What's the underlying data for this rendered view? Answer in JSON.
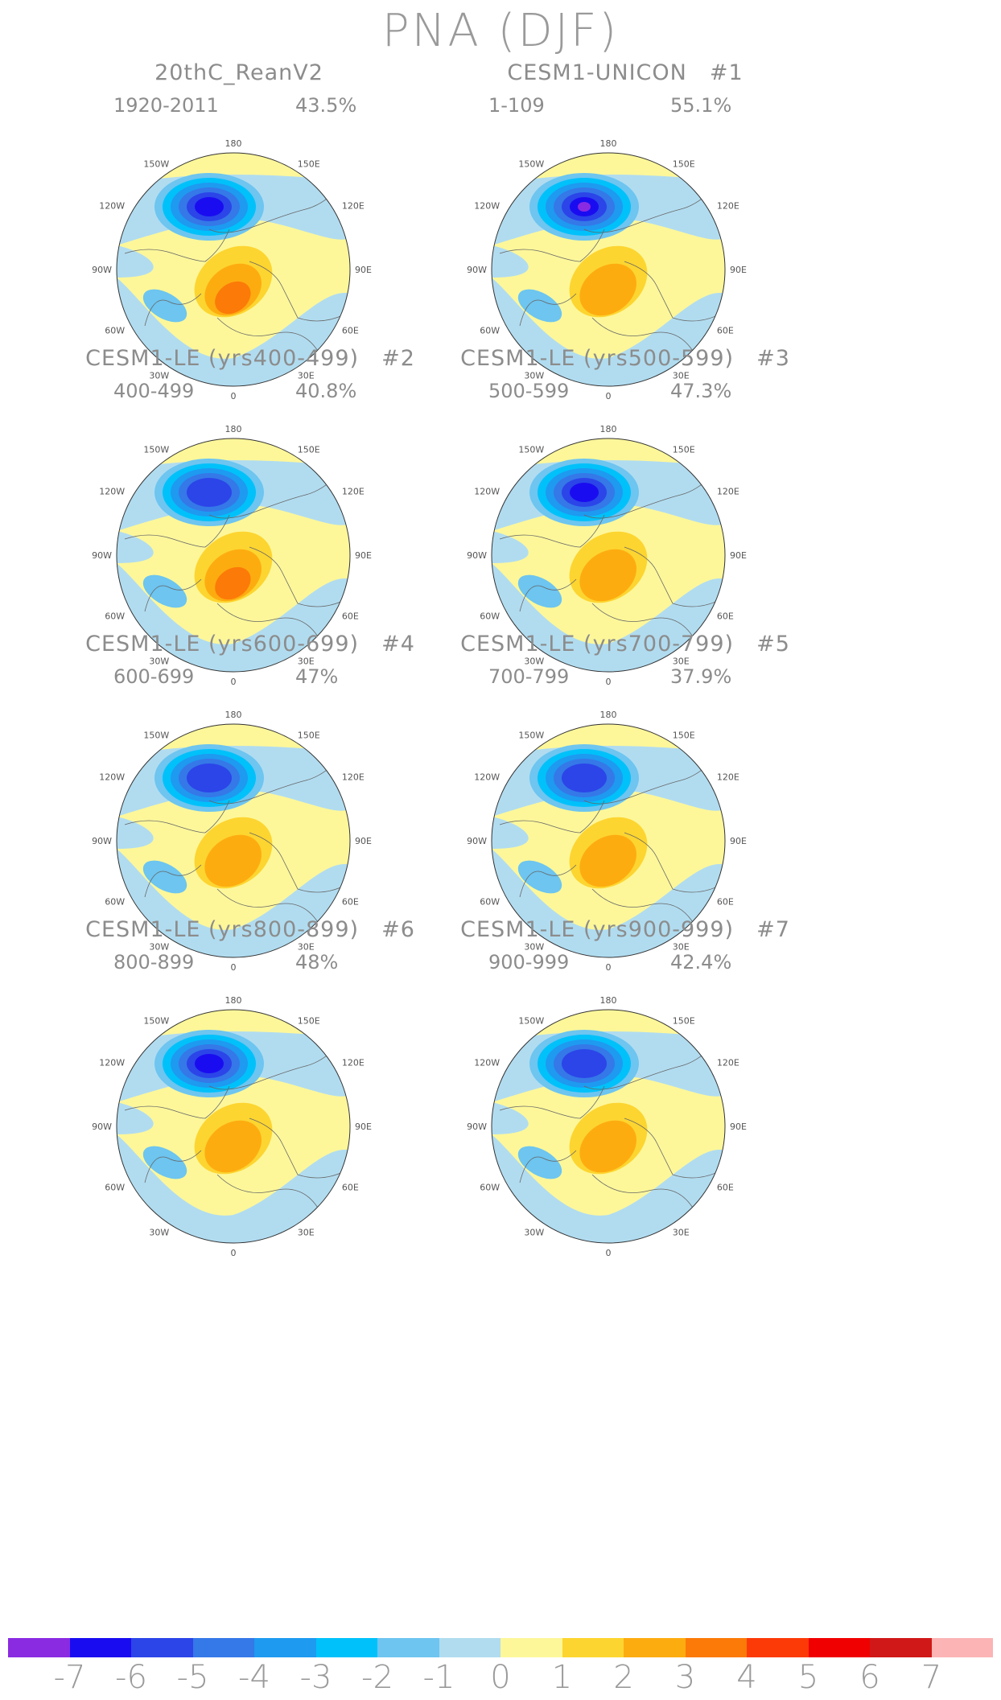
{
  "figure_title": "PNA (DJF)",
  "map_labels": {
    "top": "180",
    "bottom": "0",
    "upper_left": "150W",
    "upper_right": "150E",
    "left_upper": "120W",
    "right_upper": "120E",
    "left_mid": "90W",
    "right_mid": "90E",
    "left_lower": "60W",
    "right_lower": "60E",
    "lower_left": "30W",
    "lower_right": "30E"
  },
  "panels": [
    {
      "title": "20thC_ReanV2",
      "number": "",
      "years": "1920-2011",
      "percent": "43.5%",
      "max_neg_level": 6,
      "max_pos_level": 3
    },
    {
      "title": "CESM1-UNICON",
      "number": "#1",
      "years": "1-109",
      "percent": "55.1%",
      "max_neg_level": 7,
      "max_pos_level": 2
    },
    {
      "title": "CESM1-LE (yrs400-499)",
      "number": "#2",
      "years": "400-499",
      "percent": "40.8%",
      "max_neg_level": 5,
      "max_pos_level": 3
    },
    {
      "title": "CESM1-LE (yrs500-599)",
      "number": "#3",
      "years": "500-599",
      "percent": "47.3%",
      "max_neg_level": 6,
      "max_pos_level": 2
    },
    {
      "title": "CESM1-LE (yrs600-699)",
      "number": "#4",
      "years": "600-699",
      "percent": "47%",
      "max_neg_level": 5,
      "max_pos_level": 2
    },
    {
      "title": "CESM1-LE (yrs700-799)",
      "number": "#5",
      "years": "700-799",
      "percent": "37.9%",
      "max_neg_level": 5,
      "max_pos_level": 2
    },
    {
      "title": "CESM1-LE (yrs800-899)",
      "number": "#6",
      "years": "800-899",
      "percent": "48%",
      "max_neg_level": 6,
      "max_pos_level": 2
    },
    {
      "title": "CESM1-LE (yrs900-999)",
      "number": "#7",
      "years": "900-999",
      "percent": "42.4%",
      "max_neg_level": 5,
      "max_pos_level": 2
    }
  ],
  "colorbar": {
    "colors": [
      "#8a2be2",
      "#1a0cf0",
      "#2b45e8",
      "#3578e8",
      "#1e9af0",
      "#00c1fa",
      "#6dc5f0",
      "#b1dcf0",
      "#fdf79a",
      "#fdd530",
      "#fdac10",
      "#fc7a08",
      "#fc3a08",
      "#f00000",
      "#d01818",
      "#fcb4b4"
    ],
    "labels": [
      "-7",
      "-6",
      "-5",
      "-4",
      "-3",
      "-2",
      "-1",
      "0",
      "1",
      "2",
      "3",
      "4",
      "5",
      "6",
      "7"
    ]
  },
  "colors": {
    "neg1": "#b1dcf0",
    "neg2": "#6dc5f0",
    "neg3": "#00c1fa",
    "neg4": "#1e9af0",
    "neg5": "#3578e8",
    "neg6": "#2b45e8",
    "neg7": "#1a0cf0",
    "neg8": "#8a2be2",
    "pos0": "#fdf79a",
    "pos1": "#fdd530",
    "pos2": "#fdac10",
    "pos3": "#fc7a08"
  }
}
